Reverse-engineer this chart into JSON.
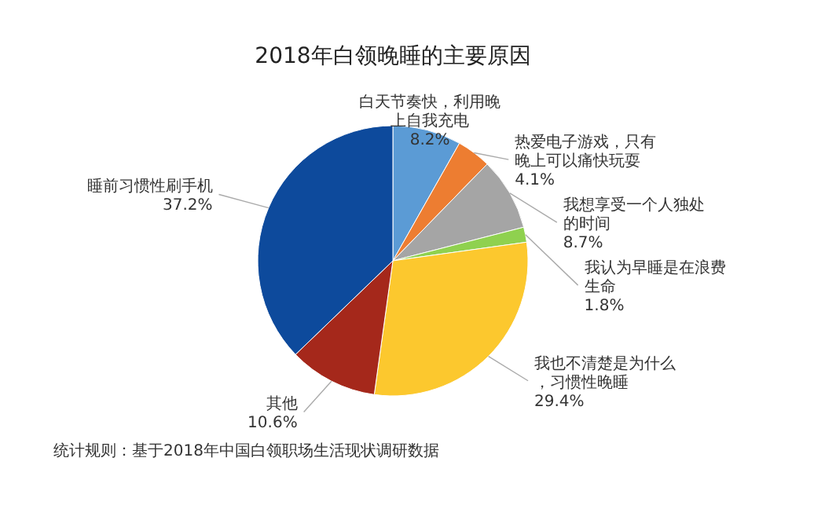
{
  "chart_data": {
    "type": "pie",
    "title": "2018年白领晚睡的主要原因",
    "categories": [
      "白天节奏快，利用晚上自我充电",
      "热爱电子游戏，只有晚上可以痛快玩耍",
      "我想享受一个人独处的时间",
      "我认为早睡是在浪费生命",
      "我也不清楚是为什么，习惯性晚睡",
      "其他",
      "睡前习惯性刷手机"
    ],
    "values": [
      8.2,
      4.1,
      8.7,
      1.8,
      29.4,
      10.6,
      37.2
    ],
    "value_labels": [
      "8.2%",
      "4.1%",
      "8.7%",
      "1.8%",
      "29.4%",
      "10.6%",
      "37.2%"
    ],
    "colors": [
      "#5b9bd5",
      "#ed7d31",
      "#a5a5a5",
      "#8fd14f",
      "#fcc82e",
      "#a5281b",
      "#0d4a9c"
    ],
    "annotations": [
      "统计规则：基于2018年中国白领职场生活现状调研数据"
    ]
  }
}
